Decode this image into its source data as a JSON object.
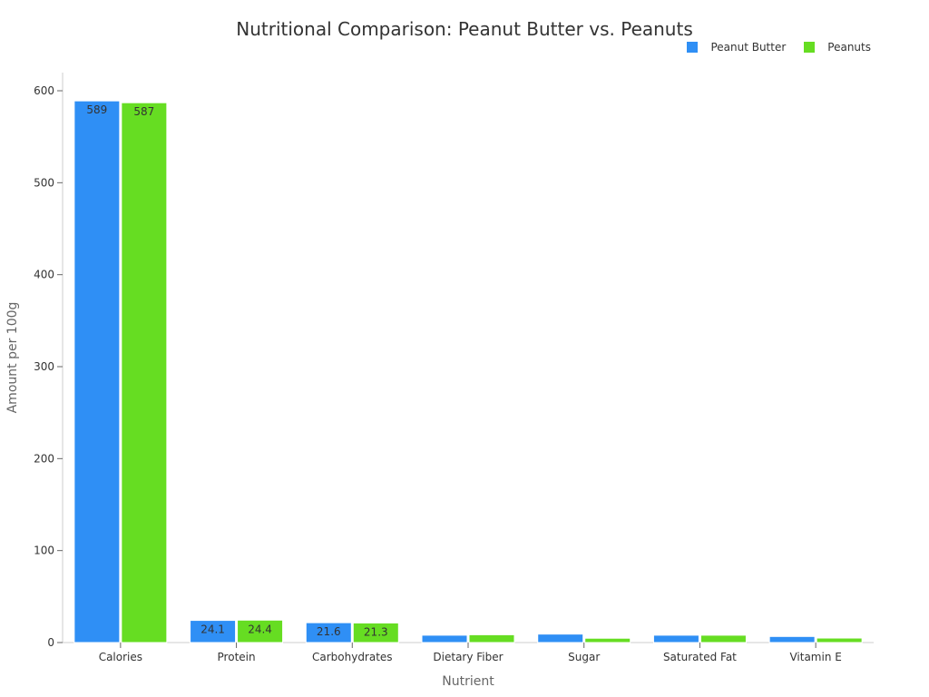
{
  "chart_data": {
    "type": "bar",
    "title": "Nutritional Comparison: Peanut Butter vs. Peanuts",
    "xlabel": "Nutrient",
    "ylabel": "Amount per 100g",
    "ylim": [
      0,
      600
    ],
    "yticks": [
      0,
      100,
      200,
      300,
      400,
      500,
      600
    ],
    "grid": false,
    "legend_position": "top-right",
    "categories": [
      "Calories",
      "Protein",
      "Carbohydrates",
      "Dietary Fiber",
      "Sugar",
      "Saturated Fat",
      "Vitamin E"
    ],
    "series": [
      {
        "name": "Peanut Butter",
        "color": "#2f8ff5",
        "values": [
          589,
          24.1,
          21.6,
          8,
          9.2,
          8,
          6.6
        ]
      },
      {
        "name": "Peanuts",
        "color": "#66dd22",
        "values": [
          587,
          24.4,
          21.3,
          8.5,
          4.7,
          8,
          4.9
        ]
      }
    ]
  }
}
